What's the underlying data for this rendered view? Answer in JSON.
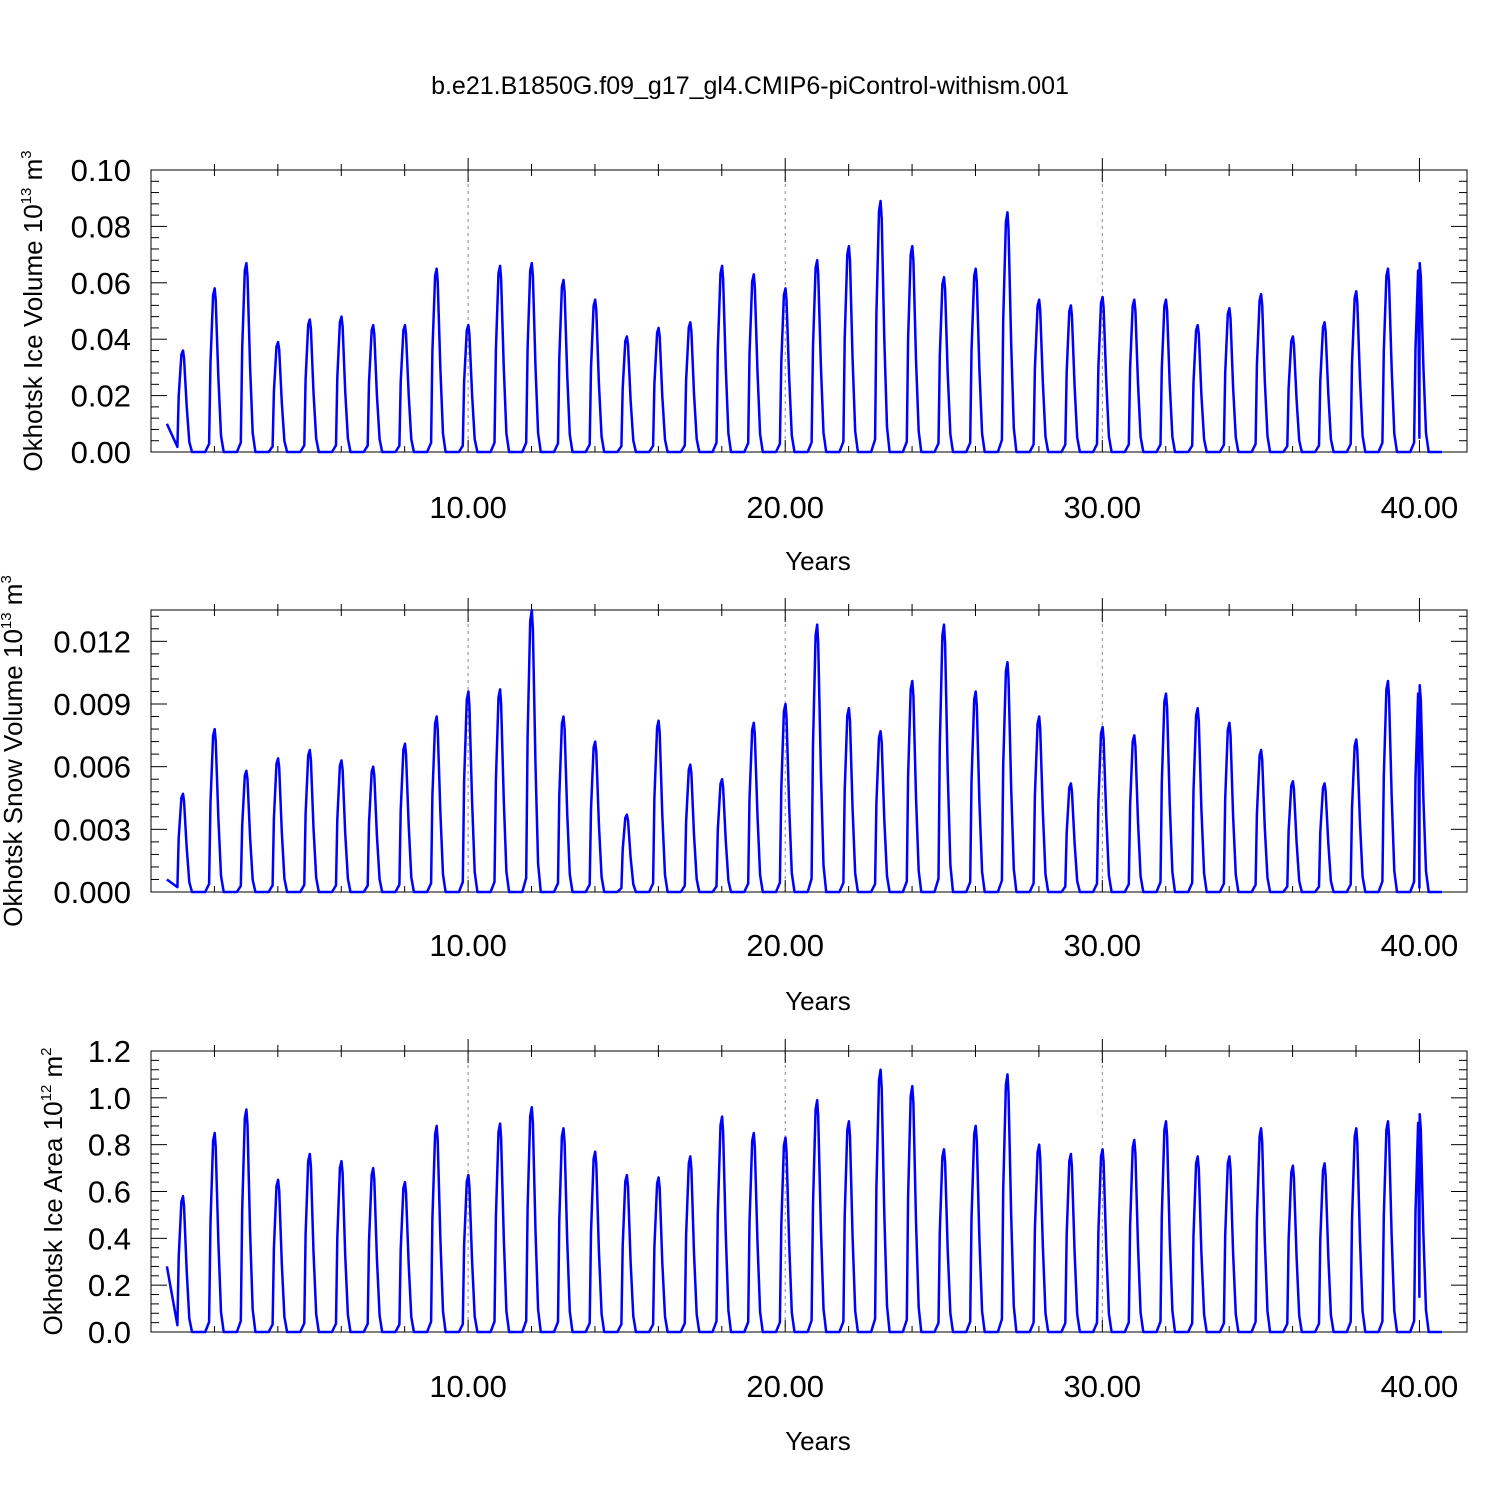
{
  "title": "b.e21.B1850G.f09_g17_gl4.CMIP6-piControl-withism.001",
  "line_color": "#0000ff",
  "chart_data": [
    {
      "type": "line",
      "xlabel": "Years",
      "ylabel": "Okhotsk Ice Volume 10",
      "ylabel_exp": "13",
      "ylabel_unit": "m",
      "ylabel_unit_exp": "3",
      "xlim": [
        0.5,
        40.0
      ],
      "ylim": [
        0.0,
        0.1
      ],
      "x_ticks": [
        "10.00",
        "20.00",
        "30.00",
        "40.00"
      ],
      "y_ticks": [
        "0.00",
        "0.02",
        "0.04",
        "0.06",
        "0.08",
        "0.10"
      ],
      "grid": "dashed vertical lines at 10, 20, 30",
      "series": [
        {
          "start_year": 0.5,
          "start_value": 0.01,
          "end_value": 0.005,
          "annual_peaks": [
            0.036,
            0.058,
            0.067,
            0.039,
            0.047,
            0.048,
            0.045,
            0.045,
            0.065,
            0.045,
            0.066,
            0.067,
            0.061,
            0.054,
            0.041,
            0.044,
            0.046,
            0.066,
            0.063,
            0.058,
            0.068,
            0.073,
            0.089,
            0.073,
            0.062,
            0.065,
            0.085,
            0.054,
            0.052,
            0.055,
            0.054,
            0.054,
            0.045,
            0.051,
            0.056,
            0.041,
            0.046,
            0.057,
            0.065,
            0.067
          ]
        }
      ]
    },
    {
      "type": "line",
      "xlabel": "Years",
      "ylabel": "Okhotsk Snow Volume 10",
      "ylabel_exp": "13",
      "ylabel_unit": "m",
      "ylabel_unit_exp": "3",
      "xlim": [
        0.5,
        40.0
      ],
      "ylim": [
        0.0,
        0.0135
      ],
      "x_ticks": [
        "10.00",
        "20.00",
        "30.00",
        "40.00"
      ],
      "y_ticks": [
        "0.000",
        "0.003",
        "0.006",
        "0.009",
        "0.012"
      ],
      "grid": "dashed vertical lines at 10, 20, 30",
      "series": [
        {
          "start_year": 0.5,
          "start_value": 0.0006,
          "end_value": 0.0002,
          "annual_peaks": [
            0.0047,
            0.0078,
            0.0058,
            0.0064,
            0.0068,
            0.0063,
            0.006,
            0.0071,
            0.0084,
            0.0096,
            0.0097,
            0.0135,
            0.0084,
            0.0072,
            0.0037,
            0.0082,
            0.0061,
            0.0054,
            0.0081,
            0.009,
            0.0128,
            0.0088,
            0.0077,
            0.0101,
            0.0128,
            0.0096,
            0.011,
            0.0084,
            0.0052,
            0.0079,
            0.0075,
            0.0095,
            0.0088,
            0.0081,
            0.0068,
            0.0053,
            0.0052,
            0.0073,
            0.0101,
            0.0099
          ]
        }
      ]
    },
    {
      "type": "line",
      "xlabel": "Years",
      "ylabel": "Okhotsk Ice Area 10",
      "ylabel_exp": "12",
      "ylabel_unit": "m",
      "ylabel_unit_exp": "2",
      "xlim": [
        0.5,
        40.0
      ],
      "ylim": [
        0.0,
        1.2
      ],
      "x_ticks": [
        "10.00",
        "20.00",
        "30.00",
        "40.00"
      ],
      "y_ticks": [
        "0.0",
        "0.2",
        "0.4",
        "0.6",
        "0.8",
        "1.0",
        "1.2"
      ],
      "grid": "dashed vertical lines at 10, 20, 30",
      "series": [
        {
          "start_year": 0.5,
          "start_value": 0.28,
          "end_value": 0.15,
          "annual_peaks": [
            0.58,
            0.85,
            0.95,
            0.65,
            0.76,
            0.73,
            0.7,
            0.64,
            0.88,
            0.67,
            0.89,
            0.96,
            0.87,
            0.77,
            0.67,
            0.66,
            0.75,
            0.92,
            0.85,
            0.83,
            0.99,
            0.9,
            1.12,
            1.05,
            0.78,
            0.88,
            1.1,
            0.8,
            0.76,
            0.78,
            0.82,
            0.9,
            0.75,
            0.75,
            0.87,
            0.71,
            0.72,
            0.87,
            0.9,
            0.93
          ]
        }
      ]
    }
  ]
}
